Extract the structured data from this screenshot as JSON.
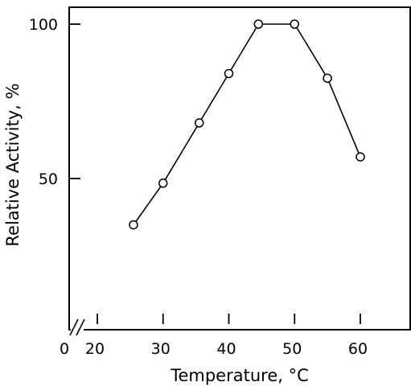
{
  "chart_data": {
    "type": "line",
    "xlabel": "Temperature, °C",
    "ylabel": "Relative Activity, %",
    "xlim": [
      15,
      67
    ],
    "ylim": [
      0,
      105
    ],
    "x_origin_label": "0",
    "x_axis_break": true,
    "x_ticks": [
      20,
      30,
      40,
      50,
      60
    ],
    "y_ticks": [
      50,
      100
    ],
    "grid": false,
    "legend": "none",
    "marker": "open-circle",
    "line_color": "#000000",
    "series": [
      {
        "x": [
          25.5,
          30,
          35.5,
          40,
          44.5,
          50,
          55,
          60
        ],
        "y": [
          35,
          48.5,
          68,
          84,
          100,
          100,
          82.5,
          57
        ]
      }
    ]
  }
}
